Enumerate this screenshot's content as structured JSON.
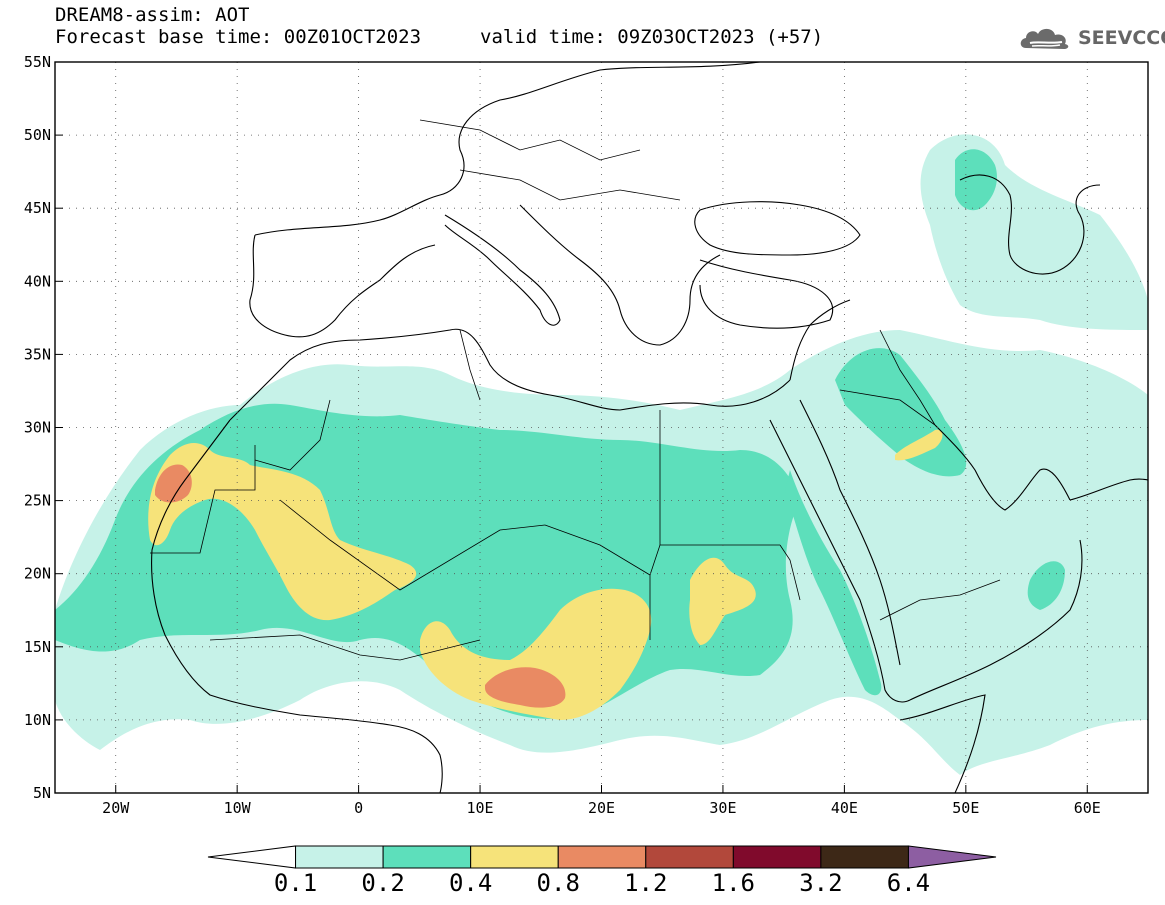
{
  "header": {
    "title_line1": "DREAM8-assim: AOT",
    "base_time": "Forecast base time: 00Z01OCT2023",
    "valid_time": "valid time: 09Z03OCT2023 (+57)",
    "logo_text": "SEEVCCC",
    "logo_icon": "cloud-icon"
  },
  "map": {
    "lon_range": [
      -25,
      65
    ],
    "lat_range": [
      5,
      55
    ],
    "lat_ticks": [
      {
        "value": 55,
        "label": "55N"
      },
      {
        "value": 50,
        "label": "50N"
      },
      {
        "value": 45,
        "label": "45N"
      },
      {
        "value": 40,
        "label": "40N"
      },
      {
        "value": 35,
        "label": "35N"
      },
      {
        "value": 30,
        "label": "30N"
      },
      {
        "value": 25,
        "label": "25N"
      },
      {
        "value": 20,
        "label": "20N"
      },
      {
        "value": 15,
        "label": "15N"
      },
      {
        "value": 10,
        "label": "10N"
      },
      {
        "value": 5,
        "label": "5N"
      }
    ],
    "lon_ticks": [
      {
        "value": -20,
        "label": "20W"
      },
      {
        "value": -10,
        "label": "10W"
      },
      {
        "value": 0,
        "label": "0"
      },
      {
        "value": 10,
        "label": "10E"
      },
      {
        "value": 20,
        "label": "20E"
      },
      {
        "value": 30,
        "label": "30E"
      },
      {
        "value": 40,
        "label": "40E"
      },
      {
        "value": 50,
        "label": "50E"
      },
      {
        "value": 60,
        "label": "60E"
      }
    ],
    "gridlines": "dotted"
  },
  "colorbar": {
    "colors": [
      "#ffffff",
      "#c6f2e8",
      "#5ddfbb",
      "#f6e37a",
      "#e98a63",
      "#b2483b",
      "#800a2c",
      "#3d2817",
      "#8d5ea2"
    ],
    "labels": [
      "0.1",
      "0.2",
      "0.4",
      "0.8",
      "1.2",
      "1.6",
      "3.2",
      "6.4"
    ]
  }
}
